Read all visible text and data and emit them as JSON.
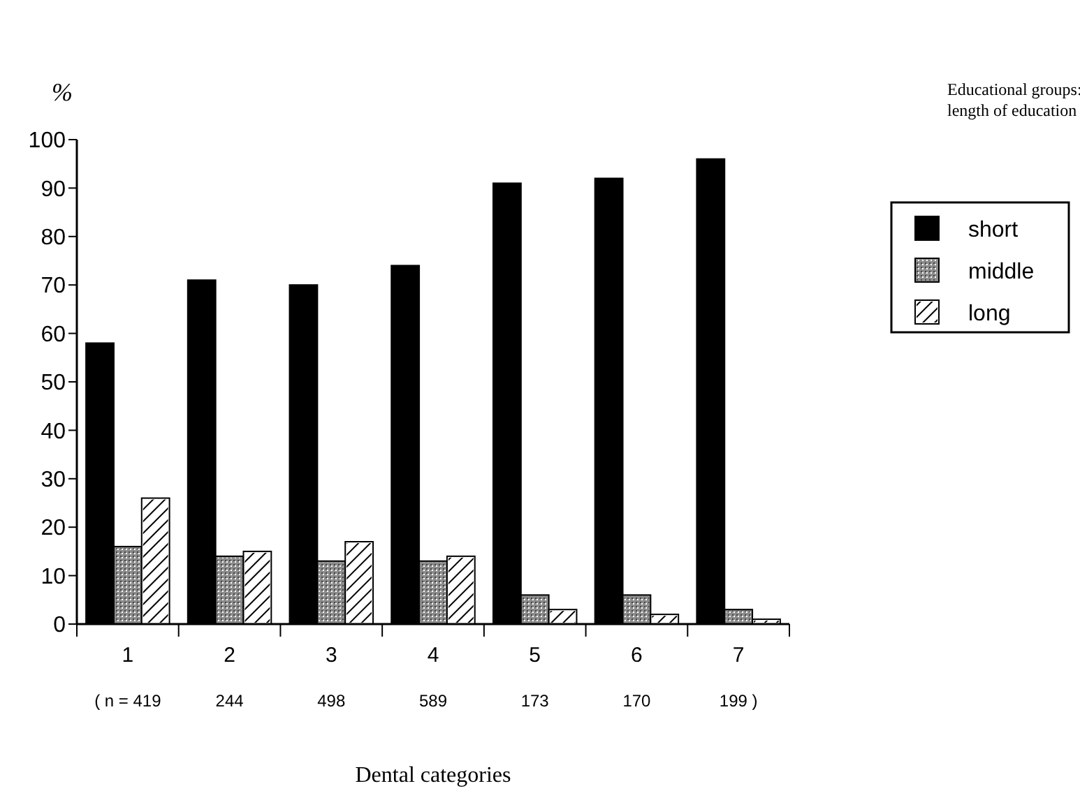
{
  "chart_data": {
    "type": "bar",
    "ylabel": "%",
    "xlabel": "Dental categories",
    "legend_title": "Educational groups: length of education",
    "categories": [
      "1",
      "2",
      "3",
      "4",
      "5",
      "6",
      "7"
    ],
    "series": [
      {
        "name": "short",
        "color": "#000000",
        "values": [
          58,
          71,
          70,
          74,
          91,
          92,
          96
        ]
      },
      {
        "name": "middle",
        "color": "#8c8c8c",
        "values": [
          16,
          14,
          13,
          13,
          6,
          6,
          3
        ]
      },
      {
        "name": "long",
        "color": "#ffffff",
        "values": [
          26,
          15,
          17,
          14,
          3,
          2,
          1
        ]
      }
    ],
    "annotations": [
      "( n = 419",
      "244",
      "498",
      "589",
      "173",
      "170",
      "199 )"
    ],
    "ylim": [
      0,
      100
    ],
    "yticks": [
      0,
      10,
      20,
      30,
      40,
      50,
      60,
      70,
      80,
      90,
      100
    ],
    "legend": "top right",
    "grid": false
  }
}
